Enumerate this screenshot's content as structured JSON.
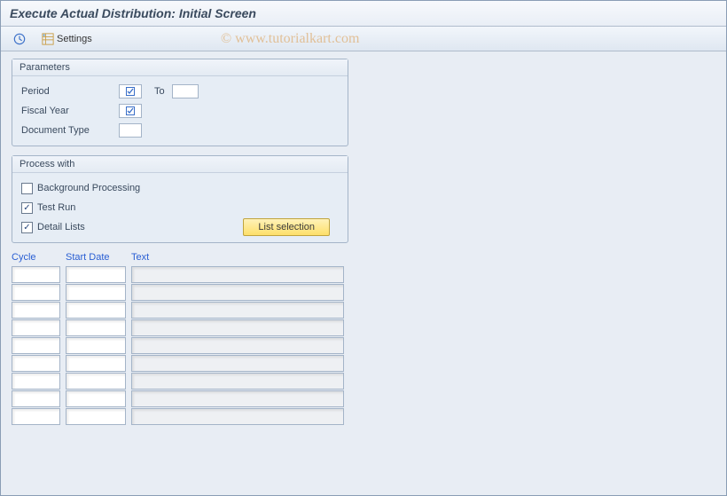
{
  "title": "Execute Actual Distribution: Initial Screen",
  "watermark": "© www.tutorialkart.com",
  "toolbar": {
    "execute_icon": "execute",
    "settings_label": "Settings"
  },
  "parameters": {
    "group_title": "Parameters",
    "period_label": "Period",
    "to_label": "To",
    "fiscal_year_label": "Fiscal Year",
    "document_type_label": "Document Type",
    "period_required": true,
    "fiscal_year_required": true
  },
  "process": {
    "group_title": "Process with",
    "background_label": "Background Processing",
    "background_checked": false,
    "testrun_label": "Test Run",
    "testrun_checked": true,
    "detail_label": "Detail Lists",
    "detail_checked": true,
    "list_selection_label": "List selection"
  },
  "grid": {
    "col_cycle": "Cycle",
    "col_start": "Start Date",
    "col_text": "Text",
    "row_count": 9
  },
  "colors": {
    "background": "#e8edf4",
    "border": "#a4b4c8",
    "header_text": "#2a5fd3",
    "yellow_btn_top": "#fff2b8",
    "yellow_btn_bottom": "#fddf6a"
  }
}
